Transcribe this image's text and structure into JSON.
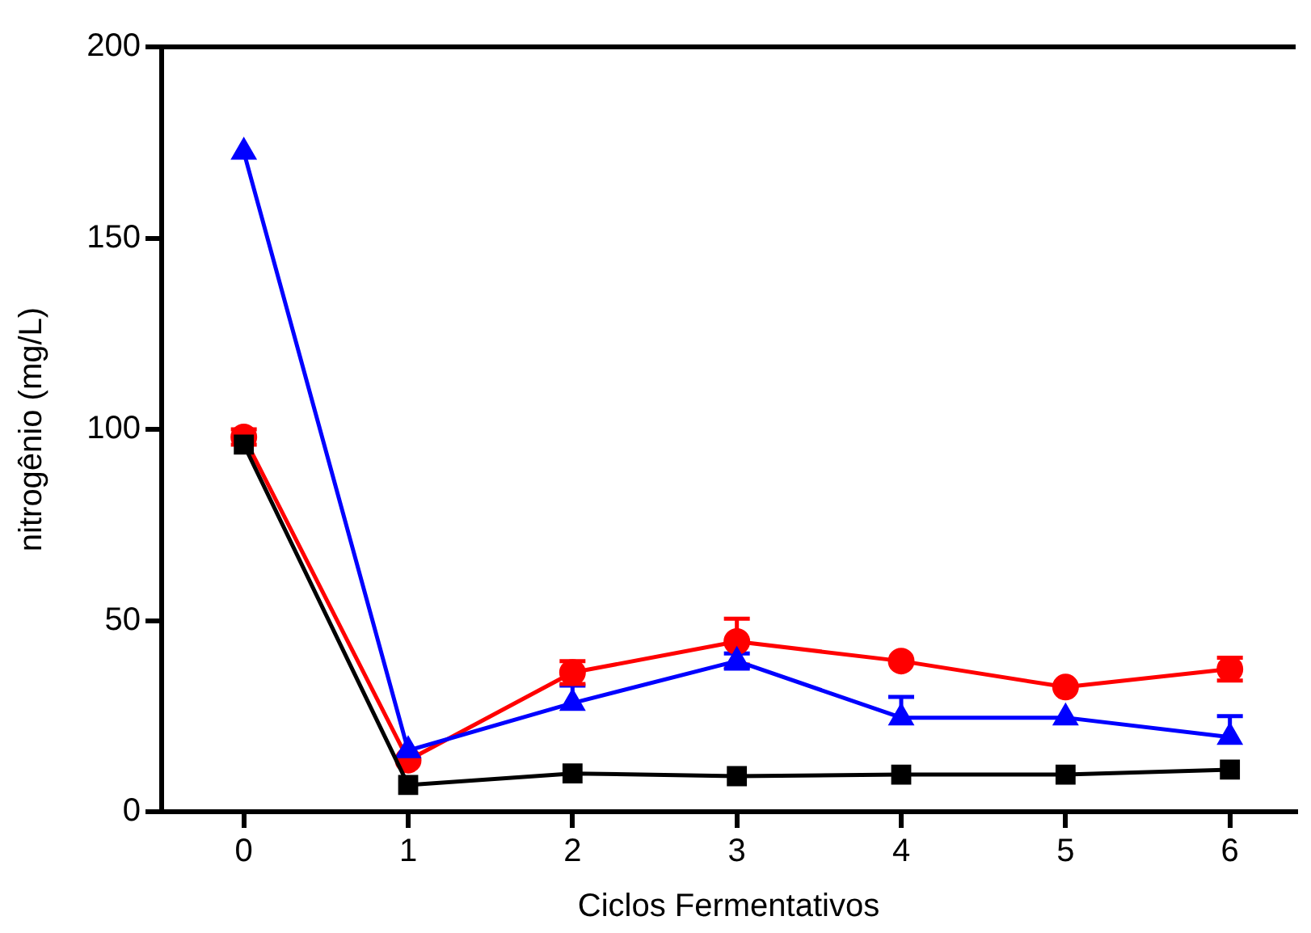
{
  "chart_data": {
    "type": "line",
    "xlabel": "Ciclos Fermentativos",
    "ylabel": "nitrogênio (mg/L)",
    "x": [
      0,
      1,
      2,
      3,
      4,
      5,
      6
    ],
    "xlim": [
      -0.5,
      6.4
    ],
    "xticks": [
      0,
      1,
      2,
      3,
      4,
      5,
      6
    ],
    "ylim": [
      0,
      200
    ],
    "yticks": [
      0,
      50,
      100,
      150,
      200
    ],
    "grid": false,
    "line_style": "solid",
    "series": [
      {
        "color": "#000000",
        "marker": "square",
        "values": [
          96,
          7,
          10,
          9.3,
          9.7,
          9.7,
          11
        ],
        "errors": [
          null,
          null,
          null,
          null,
          null,
          null,
          null
        ]
      },
      {
        "color": "#0000ff",
        "marker": "triangle",
        "values": [
          172.5,
          16,
          28.4,
          39.4,
          24.6,
          24.6,
          19.5
        ],
        "errors": [
          null,
          null,
          [
            28.4,
            33
          ],
          2,
          [
            24.6,
            30
          ],
          null,
          [
            19.5,
            25
          ]
        ]
      },
      {
        "color": "#ff0000",
        "marker": "circle",
        "values": [
          98,
          13.5,
          36.4,
          44.5,
          39.4,
          32.6,
          37.3
        ],
        "errors": [
          2,
          null,
          3,
          6,
          null,
          null,
          3
        ]
      }
    ]
  }
}
